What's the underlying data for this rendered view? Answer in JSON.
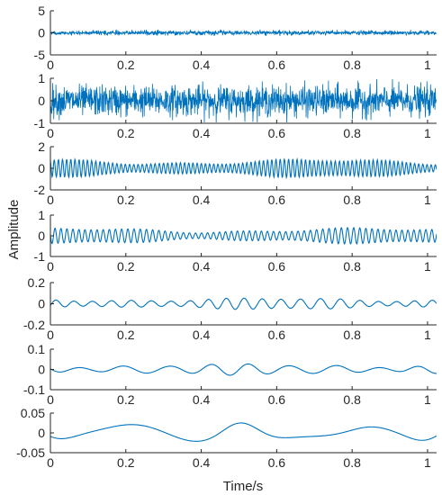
{
  "chart_data": {
    "type": "line",
    "xlabel": "Time/s",
    "ylabel": "Amplitude",
    "line_color": "#0072BD",
    "x_range": [
      0,
      1.024
    ],
    "x_ticks": [
      0,
      0.2,
      0.4,
      0.6,
      0.8,
      1
    ],
    "x_tick_labels": [
      "0",
      "0.2",
      "0.4",
      "0.6",
      "0.8",
      "1"
    ],
    "grid": false,
    "panels": [
      {
        "name": "",
        "ylim": [
          -5,
          5
        ],
        "y_ticks": [
          5,
          0,
          -5
        ],
        "y_tick_labels": [
          "5",
          "0",
          "-5"
        ],
        "approx_amplitude": 0.45,
        "dominant_frequency_hz": 180,
        "signal": "broadband noise"
      },
      {
        "name": "",
        "ylim": [
          -1,
          1
        ],
        "y_ticks": [
          1,
          0,
          -1
        ],
        "y_tick_labels": [
          "1",
          "0",
          "-1"
        ],
        "approx_amplitude": 0.6,
        "dominant_frequency_hz": 160,
        "signal": "broadband noise"
      },
      {
        "name": "",
        "ylim": [
          -2,
          2
        ],
        "y_ticks": [
          2,
          0,
          -2
        ],
        "y_tick_labels": [
          "2",
          "0",
          "-2"
        ],
        "approx_amplitude": 0.8,
        "dominant_frequency_hz": 90,
        "signal": "oscillation"
      },
      {
        "name": "",
        "ylim": [
          -1,
          1
        ],
        "y_ticks": [
          1,
          0,
          -1
        ],
        "y_tick_labels": [
          "1",
          "0",
          "-1"
        ],
        "approx_amplitude": 0.35,
        "dominant_frequency_hz": 62,
        "signal": "oscillation"
      },
      {
        "name": "",
        "ylim": [
          -0.2,
          0.2
        ],
        "y_ticks": [
          0.2,
          0,
          -0.2
        ],
        "y_tick_labels": [
          "0.2",
          "0",
          "-0.2"
        ],
        "approx_amplitude": 0.05,
        "dominant_frequency_hz": 20,
        "signal": "oscillation"
      },
      {
        "name": "",
        "ylim": [
          -0.1,
          0.1
        ],
        "y_ticks": [
          0.1,
          0,
          -0.1
        ],
        "y_tick_labels": [
          "0.1",
          "0",
          "-0.1"
        ],
        "approx_amplitude": 0.025,
        "dominant_frequency_hz": 9,
        "signal": "oscillation"
      },
      {
        "name": "",
        "ylim": [
          -0.05,
          0.05
        ],
        "y_ticks": [
          0.05,
          0,
          -0.05
        ],
        "y_tick_labels": [
          "0.05",
          "0",
          "-0.05"
        ],
        "approx_amplitude": 0.025,
        "dominant_frequency_hz": 3.2,
        "signal": "slow wave"
      }
    ]
  }
}
